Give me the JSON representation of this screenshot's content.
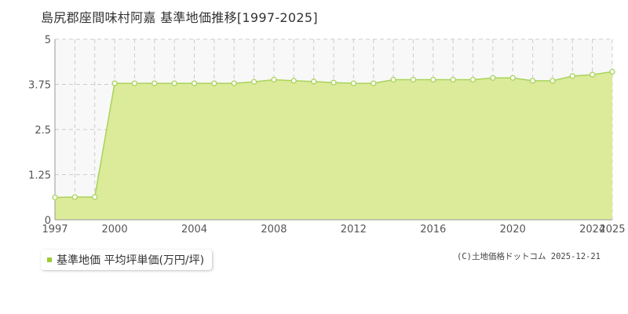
{
  "title": "島尻郡座間味村阿嘉 基準地価推移[1997-2025]",
  "legend": {
    "label": "基準地価 平均坪単価(万円/坪)"
  },
  "copyright": "(C)土地価格ドットコム 2025-12-21",
  "colors": {
    "fill": "#dbeb9a",
    "line": "#a9d35a",
    "marker_stroke": "#a9d35a",
    "marker_fill": "#ffffff",
    "plot_bg": "#f8f8f8",
    "grid": "#cccccc",
    "axis_text": "#555555",
    "legend_swatch": "#9acd32"
  },
  "chart_data": {
    "type": "area",
    "x": [
      1997,
      1998,
      1999,
      2000,
      2001,
      2002,
      2003,
      2004,
      2005,
      2006,
      2007,
      2008,
      2009,
      2010,
      2011,
      2012,
      2013,
      2014,
      2015,
      2016,
      2017,
      2018,
      2019,
      2020,
      2021,
      2022,
      2023,
      2024,
      2025
    ],
    "series": [
      {
        "name": "基準地価 平均坪単価(万円/坪)",
        "values": [
          0.62,
          0.63,
          0.63,
          3.78,
          3.78,
          3.78,
          3.78,
          3.78,
          3.78,
          3.78,
          3.82,
          3.88,
          3.85,
          3.83,
          3.8,
          3.78,
          3.78,
          3.88,
          3.88,
          3.88,
          3.88,
          3.88,
          3.93,
          3.93,
          3.85,
          3.85,
          3.98,
          4.02,
          4.1
        ]
      }
    ],
    "xlim": [
      1997,
      2025
    ],
    "ylim": [
      0,
      5
    ],
    "yticks": [
      0,
      1.25,
      2.5,
      3.75,
      5
    ],
    "ytick_labels": [
      "0",
      "1.25",
      "2.5",
      "3.75",
      "5"
    ],
    "xtick_labels": [
      "1997",
      "2000",
      "2004",
      "2008",
      "2012",
      "2016",
      "2020",
      "2024",
      "2025"
    ],
    "grid": true,
    "legend_position": "bottom-left"
  }
}
